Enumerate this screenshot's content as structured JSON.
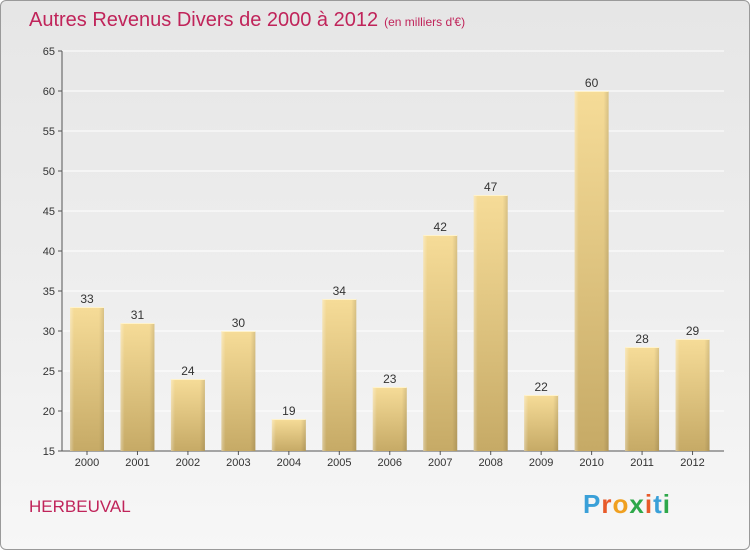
{
  "header": {
    "title": "Autres Revenus Divers de 2000 à 2012",
    "unit": "(en milliers d'€)"
  },
  "footer": {
    "commune": "HERBEUVAL",
    "logo_letters": [
      "P",
      "r",
      "o",
      "x",
      "i",
      "t",
      "i"
    ],
    "logo_colors": [
      "#3aa0d8",
      "#e85a2a",
      "#f0a020",
      "#2ea84a",
      "#e85a2a",
      "#3aa0d8",
      "#2ea84a"
    ]
  },
  "colors": {
    "title": "#c0245a",
    "bar_light": "#f6dc98",
    "bar_dark": "#c6aa66",
    "grid": "#ffffff"
  },
  "chart_data": {
    "type": "bar",
    "categories": [
      "2000",
      "2001",
      "2002",
      "2003",
      "2004",
      "2005",
      "2006",
      "2007",
      "2008",
      "2009",
      "2010",
      "2011",
      "2012"
    ],
    "values": [
      33,
      31,
      24,
      30,
      19,
      34,
      23,
      42,
      47,
      22,
      60,
      28,
      29
    ],
    "title": "Autres Revenus Divers de 2000 à 2012",
    "xlabel": "",
    "ylabel": "",
    "ylim": [
      15,
      65
    ],
    "yticks": [
      15,
      20,
      25,
      30,
      35,
      40,
      45,
      50,
      55,
      60,
      65
    ],
    "grid": true,
    "data_labels": true
  }
}
